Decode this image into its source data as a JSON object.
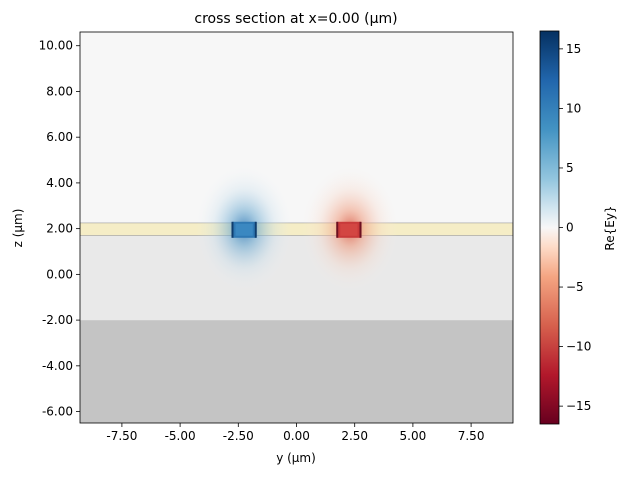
{
  "chart_data": {
    "type": "heatmap",
    "title": "cross section at x=0.00 (μm)",
    "xlabel": "y (μm)",
    "ylabel": "z (μm)",
    "xlim": [
      -9.3,
      9.3
    ],
    "ylim": [
      -6.5,
      10.6
    ],
    "x_ticks": [
      -7.5,
      -5.0,
      -2.5,
      0.0,
      2.5,
      5.0,
      7.5
    ],
    "x_tick_labels": [
      "-7.50",
      "-5.00",
      "-2.50",
      "0.00",
      "2.50",
      "5.00",
      "7.50"
    ],
    "y_ticks": [
      -6,
      -4,
      -2,
      0,
      2,
      4,
      6,
      8,
      10
    ],
    "y_tick_labels": [
      "-6.00",
      "-4.00",
      "-2.00",
      "0.00",
      "2.00",
      "4.00",
      "6.00",
      "8.00",
      "10.00"
    ],
    "colorbar": {
      "label": "Re{Ey}",
      "range": [
        -16.5,
        16.5
      ],
      "ticks": [
        -15,
        -10,
        -5,
        0,
        5,
        10,
        15
      ],
      "tick_labels": [
        "−15",
        "−10",
        "−5",
        "0",
        "5",
        "10",
        "15"
      ],
      "colormap": "RdBu",
      "color_low": "#67001f",
      "color_mid": "#f7f7f7",
      "color_high": "#053061"
    },
    "structures": [
      {
        "region": "substrate",
        "y_range": [
          -9.3,
          9.3
        ],
        "z_range": [
          -6.5,
          -2.0
        ],
        "color": "#c4c4c4"
      },
      {
        "region": "cladding",
        "y_range": [
          -9.3,
          9.3
        ],
        "z_range": [
          -2.0,
          1.7
        ],
        "color": "#e9e9e9"
      },
      {
        "region": "slab",
        "y_range": [
          -9.3,
          9.3
        ],
        "z_range": [
          1.7,
          2.25
        ],
        "color": "#f5edc6"
      },
      {
        "region": "core-left",
        "y_range": [
          -2.75,
          -1.75
        ],
        "z_range": [
          1.6,
          2.3
        ]
      },
      {
        "region": "core-right",
        "y_range": [
          1.75,
          2.75
        ],
        "z_range": [
          1.6,
          2.3
        ]
      }
    ],
    "field_lobes": [
      {
        "center_y": -2.25,
        "center_z": 2.0,
        "peak": 16.5
      },
      {
        "center_y": 2.3,
        "center_z": 2.0,
        "peak": -16.5
      }
    ]
  }
}
